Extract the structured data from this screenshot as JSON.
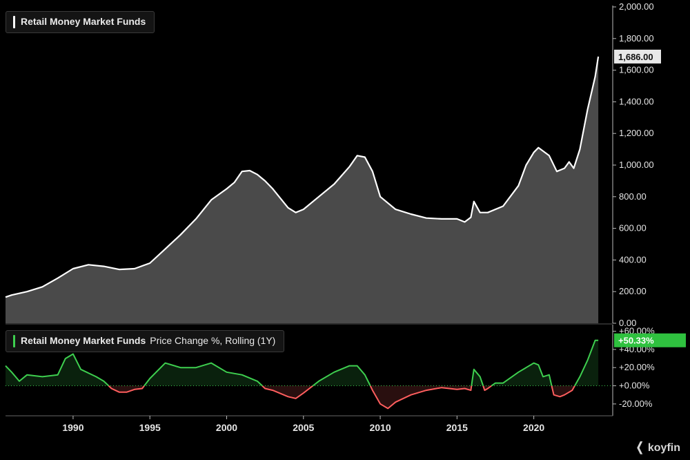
{
  "chart_data": [
    {
      "type": "area",
      "title": "Retail Money Market Funds",
      "series_name": "Retail Money Market Funds",
      "last_value_label": "1,686.00",
      "ylim": [
        0,
        2000
      ],
      "xlim": [
        1985.6,
        2024.6
      ],
      "y_ticks": [
        "0.00",
        "200.00",
        "400.00",
        "600.00",
        "800.00",
        "1,000.00",
        "1,200.00",
        "1,400.00",
        "1,600.00",
        "1,800.00",
        "2,000.00"
      ],
      "y_tick_values": [
        0,
        200,
        400,
        600,
        800,
        1000,
        1200,
        1400,
        1600,
        1800,
        2000
      ],
      "grid": false,
      "x": [
        1985.6,
        1986.0,
        1987.0,
        1988.0,
        1989.0,
        1990.0,
        1991.0,
        1992.0,
        1993.0,
        1994.0,
        1995.0,
        1996.0,
        1997.0,
        1998.0,
        1999.0,
        2000.0,
        2000.5,
        2001.0,
        2001.5,
        2002.0,
        2002.5,
        2003.0,
        2004.0,
        2004.5,
        2005.0,
        2006.0,
        2007.0,
        2008.0,
        2008.5,
        2009.0,
        2009.5,
        2010.0,
        2011.0,
        2012.0,
        2013.0,
        2014.0,
        2015.0,
        2015.5,
        2015.9,
        2016.1,
        2016.5,
        2017.0,
        2018.0,
        2019.0,
        2019.5,
        2020.0,
        2020.3,
        2021.0,
        2021.5,
        2022.0,
        2022.3,
        2022.6,
        2023.0,
        2023.5,
        2024.0,
        2024.2
      ],
      "y": [
        165,
        178,
        200,
        230,
        285,
        345,
        370,
        360,
        340,
        345,
        380,
        470,
        560,
        660,
        780,
        850,
        890,
        960,
        965,
        940,
        900,
        850,
        730,
        700,
        720,
        800,
        880,
        990,
        1060,
        1050,
        960,
        800,
        720,
        690,
        665,
        660,
        660,
        640,
        670,
        770,
        700,
        700,
        740,
        870,
        1000,
        1080,
        1110,
        1060,
        960,
        980,
        1020,
        980,
        1100,
        1350,
        1560,
        1686
      ],
      "area_color": "#4a4a4a",
      "line_color": "#ffffff"
    },
    {
      "type": "area",
      "title": "Retail Money Market Funds",
      "subtitle": "Price Change %, Rolling (1Y)",
      "last_value_label": "+50.33%",
      "ylim": [
        -30,
        65
      ],
      "y_ticks": [
        "-20.00%",
        "+0.00%",
        "+20.00%",
        "+40.00%",
        "+60.00%"
      ],
      "y_tick_values": [
        -20,
        0,
        20,
        40,
        60
      ],
      "x_ticks": [
        "1990",
        "1995",
        "2000",
        "2005",
        "2010",
        "2015",
        "2020"
      ],
      "x_tick_values": [
        1990,
        1995,
        2000,
        2005,
        2010,
        2015,
        2020
      ],
      "x": [
        1985.6,
        1986.0,
        1986.5,
        1987.0,
        1988.0,
        1989.0,
        1989.5,
        1990.0,
        1990.5,
        1991.0,
        1991.5,
        1992.0,
        1992.5,
        1993.0,
        1993.5,
        1994.0,
        1994.5,
        1995.0,
        1996.0,
        1997.0,
        1998.0,
        1999.0,
        2000.0,
        2001.0,
        2002.0,
        2002.5,
        2003.0,
        2004.0,
        2004.5,
        2005.0,
        2006.0,
        2007.0,
        2008.0,
        2008.5,
        2009.0,
        2009.5,
        2010.0,
        2010.5,
        2011.0,
        2012.0,
        2013.0,
        2014.0,
        2015.0,
        2015.5,
        2015.9,
        2016.1,
        2016.5,
        2016.8,
        2017.0,
        2017.5,
        2018.0,
        2019.0,
        2019.5,
        2020.0,
        2020.3,
        2020.6,
        2021.0,
        2021.3,
        2021.7,
        2022.0,
        2022.5,
        2023.0,
        2023.5,
        2024.0,
        2024.2
      ],
      "y": [
        22,
        15,
        5,
        12,
        10,
        12,
        30,
        35,
        18,
        14,
        10,
        5,
        -3,
        -7,
        -7,
        -4,
        -3,
        8,
        25,
        20,
        20,
        25,
        15,
        12,
        5,
        -3,
        -5,
        -12,
        -14,
        -8,
        5,
        15,
        22,
        22,
        12,
        -5,
        -20,
        -25,
        -18,
        -10,
        -5,
        -2,
        -4,
        -3,
        -5,
        18,
        10,
        -5,
        -3,
        3,
        3,
        15,
        20,
        25,
        23,
        10,
        12,
        -10,
        -12,
        -10,
        -5,
        10,
        28,
        50,
        50
      ],
      "positive_color": "#3ecf4f",
      "negative_color": "#ff5e5e"
    }
  ],
  "brand": {
    "name": "koyfin"
  },
  "colors": {
    "background": "#000000",
    "label_box": "#e8e8e8",
    "pct_label_box": "#2fc13f"
  }
}
